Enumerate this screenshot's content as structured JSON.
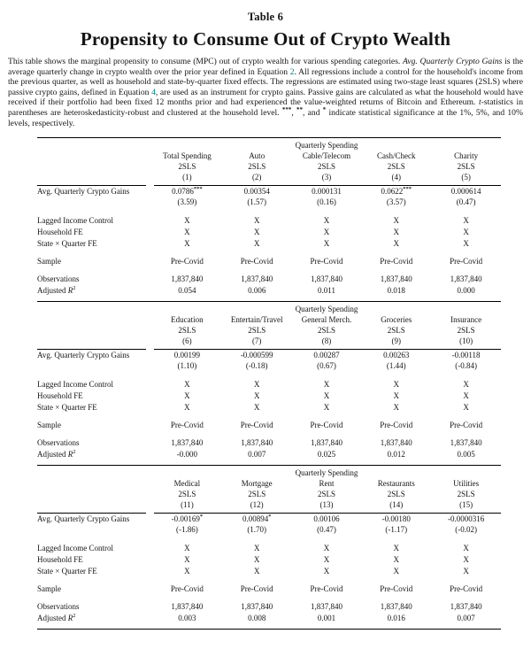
{
  "table": {
    "label": "Table 6",
    "title": "Propensity to Consume Out of Crypto Wealth",
    "note_segments": [
      {
        "style": "plain",
        "text": "This table shows the marginal propensity to consume (MPC) out of crypto wealth for various spending categories. "
      },
      {
        "style": "italic",
        "text": "Avg. Quarterly Crypto Gains"
      },
      {
        "style": "plain",
        "text": " is the average quarterly change in crypto wealth over the prior year defined in Equation "
      },
      {
        "style": "link",
        "text": "2"
      },
      {
        "style": "plain",
        "text": ". All regressions include a control for the household's income from the previous quarter, as well as household and state-by-quarter fixed effects. The regressions are estimated using two-stage least squares (2SLS) where passive crypto gains, defined in Equation "
      },
      {
        "style": "link",
        "text": "4"
      },
      {
        "style": "plain",
        "text": ", are used as an instrument for crypto gains. Passive gains are calculated as what the household would have received if their portfolio had been fixed 12 months prior and had experienced the value-weighted returns of Bitcoin and Ethereum. "
      },
      {
        "style": "italic",
        "text": "t"
      },
      {
        "style": "plain",
        "text": "-statistics in parentheses are heteroskedasticity-robust and clustered at the household level. "
      },
      {
        "style": "stars",
        "text": "***"
      },
      {
        "style": "plain",
        "text": ", "
      },
      {
        "style": "stars",
        "text": "**"
      },
      {
        "style": "plain",
        "text": ", and "
      },
      {
        "style": "stars",
        "text": "*"
      },
      {
        "style": "plain",
        "text": " indicate statistical significance at the 1%, 5%, and 10% levels, respectively."
      }
    ],
    "link_color": "#008080",
    "row_labels": {
      "coef": "Avg. Quarterly Crypto Gains",
      "controls": [
        "Lagged Income Control",
        "Household FE",
        "State × Quarter FE"
      ],
      "sample": "Sample",
      "observations": "Observations",
      "adj_r2_prefix": "Adjusted ",
      "adj_r2_symbol": "R",
      "adj_r2_sup": "2"
    },
    "panels": [
      {
        "group_header": "Quarterly Spending",
        "columns": [
          "Total Spending",
          "Auto",
          "Cable/Telecom",
          "Cash/Check",
          "Charity"
        ],
        "estimators": [
          "2SLS",
          "2SLS",
          "2SLS",
          "2SLS",
          "2SLS"
        ],
        "numbers": [
          "(1)",
          "(2)",
          "(3)",
          "(4)",
          "(5)"
        ],
        "coefs": [
          {
            "value": "0.0786",
            "stars": "***",
            "t": "(3.59)"
          },
          {
            "value": "0.00354",
            "stars": "",
            "t": "(1.57)"
          },
          {
            "value": "0.000131",
            "stars": "",
            "t": "(0.16)"
          },
          {
            "value": "0.0622",
            "stars": "***",
            "t": "(3.57)"
          },
          {
            "value": "0.000614",
            "stars": "",
            "t": "(0.47)"
          }
        ],
        "controls": [
          [
            "X",
            "X",
            "X",
            "X",
            "X"
          ],
          [
            "X",
            "X",
            "X",
            "X",
            "X"
          ],
          [
            "X",
            "X",
            "X",
            "X",
            "X"
          ]
        ],
        "sample": [
          "Pre-Covid",
          "Pre-Covid",
          "Pre-Covid",
          "Pre-Covid",
          "Pre-Covid"
        ],
        "observations": [
          "1,837,840",
          "1,837,840",
          "1,837,840",
          "1,837,840",
          "1,837,840"
        ],
        "adj_r2": [
          "0.054",
          "0.006",
          "0.011",
          "0.018",
          "0.000"
        ]
      },
      {
        "group_header": "Quarterly Spending",
        "columns": [
          "Education",
          "Entertain/Travel",
          "General Merch.",
          "Groceries",
          "Insurance"
        ],
        "estimators": [
          "2SLS",
          "2SLS",
          "2SLS",
          "2SLS",
          "2SLS"
        ],
        "numbers": [
          "(6)",
          "(7)",
          "(8)",
          "(9)",
          "(10)"
        ],
        "coefs": [
          {
            "value": "0.00199",
            "stars": "",
            "t": "(1.10)"
          },
          {
            "value": "-0.000599",
            "stars": "",
            "t": "(-0.18)"
          },
          {
            "value": "0.00287",
            "stars": "",
            "t": "(0.67)"
          },
          {
            "value": "0.00263",
            "stars": "",
            "t": "(1.44)"
          },
          {
            "value": "-0.00118",
            "stars": "",
            "t": "(-0.84)"
          }
        ],
        "controls": [
          [
            "X",
            "X",
            "X",
            "X",
            "X"
          ],
          [
            "X",
            "X",
            "X",
            "X",
            "X"
          ],
          [
            "X",
            "X",
            "X",
            "X",
            "X"
          ]
        ],
        "sample": [
          "Pre-Covid",
          "Pre-Covid",
          "Pre-Covid",
          "Pre-Covid",
          "Pre-Covid"
        ],
        "observations": [
          "1,837,840",
          "1,837,840",
          "1,837,840",
          "1,837,840",
          "1,837,840"
        ],
        "adj_r2": [
          "-0.000",
          "0.007",
          "0.025",
          "0.012",
          "0.005"
        ]
      },
      {
        "group_header": "Quarterly Spending",
        "columns": [
          "Medical",
          "Mortgage",
          "Rent",
          "Restaurants",
          "Utilities"
        ],
        "estimators": [
          "2SLS",
          "2SLS",
          "2SLS",
          "2SLS",
          "2SLS"
        ],
        "numbers": [
          "(11)",
          "(12)",
          "(13)",
          "(14)",
          "(15)"
        ],
        "coefs": [
          {
            "value": "-0.00169",
            "stars": "*",
            "t": "(-1.86)"
          },
          {
            "value": "0.00894",
            "stars": "*",
            "t": "(1.70)"
          },
          {
            "value": "0.00106",
            "stars": "",
            "t": "(0.47)"
          },
          {
            "value": "-0.00180",
            "stars": "",
            "t": "(-1.17)"
          },
          {
            "value": "-0.0000316",
            "stars": "",
            "t": "(-0.02)"
          }
        ],
        "controls": [
          [
            "X",
            "X",
            "X",
            "X",
            "X"
          ],
          [
            "X",
            "X",
            "X",
            "X",
            "X"
          ],
          [
            "X",
            "X",
            "X",
            "X",
            "X"
          ]
        ],
        "sample": [
          "Pre-Covid",
          "Pre-Covid",
          "Pre-Covid",
          "Pre-Covid",
          "Pre-Covid"
        ],
        "observations": [
          "1,837,840",
          "1,837,840",
          "1,837,840",
          "1,837,840",
          "1,837,840"
        ],
        "adj_r2": [
          "0.003",
          "0.008",
          "0.001",
          "0.016",
          "0.007"
        ]
      }
    ]
  }
}
